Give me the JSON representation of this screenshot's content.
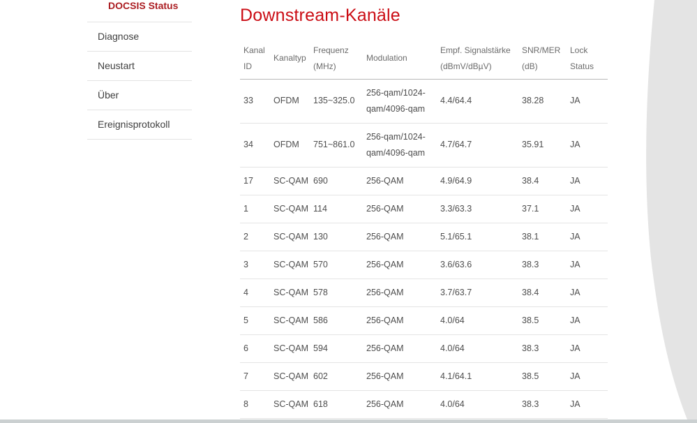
{
  "sidebar": {
    "items": [
      {
        "label": "DOCSIS Status",
        "active": true
      },
      {
        "label": "Diagnose",
        "active": false
      },
      {
        "label": "Neustart",
        "active": false
      },
      {
        "label": "Über",
        "active": false
      },
      {
        "label": "Ereignisprotokoll",
        "active": false
      }
    ]
  },
  "main": {
    "title": "Downstream-Kanäle",
    "table": {
      "columns": [
        {
          "line1": "Kanal",
          "line2": "ID"
        },
        {
          "line1": "Kanaltyp",
          "line2": ""
        },
        {
          "line1": "Frequenz",
          "line2": "(MHz)"
        },
        {
          "line1": "Modulation",
          "line2": ""
        },
        {
          "line1": "Empf. Signalstärke",
          "line2": "(dBmV/dBµV)"
        },
        {
          "line1": "SNR/MER",
          "line2": "(dB)"
        },
        {
          "line1": "Lock",
          "line2": "Status"
        }
      ],
      "rows": [
        {
          "kanal_id": "33",
          "kanaltyp": "OFDM",
          "frequenz": "135~325.0",
          "modulation": "256-qam/1024-qam/4096-qam",
          "signal": "4.4/64.4",
          "snr": "38.28",
          "lock": "JA"
        },
        {
          "kanal_id": "34",
          "kanaltyp": "OFDM",
          "frequenz": "751~861.0",
          "modulation": "256-qam/1024-qam/4096-qam",
          "signal": "4.7/64.7",
          "snr": "35.91",
          "lock": "JA"
        },
        {
          "kanal_id": "17",
          "kanaltyp": "SC-QAM",
          "frequenz": "690",
          "modulation": "256-QAM",
          "signal": "4.9/64.9",
          "snr": "38.4",
          "lock": "JA"
        },
        {
          "kanal_id": "1",
          "kanaltyp": "SC-QAM",
          "frequenz": "114",
          "modulation": "256-QAM",
          "signal": "3.3/63.3",
          "snr": "37.1",
          "lock": "JA"
        },
        {
          "kanal_id": "2",
          "kanaltyp": "SC-QAM",
          "frequenz": "130",
          "modulation": "256-QAM",
          "signal": "5.1/65.1",
          "snr": "38.1",
          "lock": "JA"
        },
        {
          "kanal_id": "3",
          "kanaltyp": "SC-QAM",
          "frequenz": "570",
          "modulation": "256-QAM",
          "signal": "3.6/63.6",
          "snr": "38.3",
          "lock": "JA"
        },
        {
          "kanal_id": "4",
          "kanaltyp": "SC-QAM",
          "frequenz": "578",
          "modulation": "256-QAM",
          "signal": "3.7/63.7",
          "snr": "38.4",
          "lock": "JA"
        },
        {
          "kanal_id": "5",
          "kanaltyp": "SC-QAM",
          "frequenz": "586",
          "modulation": "256-QAM",
          "signal": "4.0/64",
          "snr": "38.5",
          "lock": "JA"
        },
        {
          "kanal_id": "6",
          "kanaltyp": "SC-QAM",
          "frequenz": "594",
          "modulation": "256-QAM",
          "signal": "4.0/64",
          "snr": "38.3",
          "lock": "JA"
        },
        {
          "kanal_id": "7",
          "kanaltyp": "SC-QAM",
          "frequenz": "602",
          "modulation": "256-QAM",
          "signal": "4.1/64.1",
          "snr": "38.5",
          "lock": "JA"
        },
        {
          "kanal_id": "8",
          "kanaltyp": "SC-QAM",
          "frequenz": "618",
          "modulation": "256-QAM",
          "signal": "4.0/64",
          "snr": "38.3",
          "lock": "JA"
        }
      ]
    }
  },
  "colors": {
    "title_red": "#cb0d15",
    "active_item_red": "#ab1d22",
    "wedge_gray": "#e4e4e4",
    "bottom_bar_gray": "#cbd0d1"
  }
}
